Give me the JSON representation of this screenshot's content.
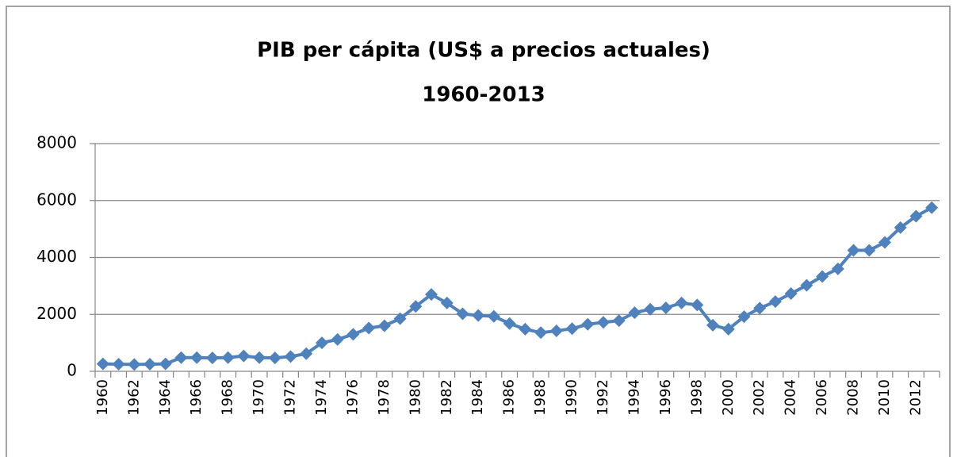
{
  "chart_data": {
    "type": "line",
    "title": "PIB per cápita (US$ a precios actuales)",
    "subtitle": "1960-2013",
    "categories": [
      "1960",
      null,
      "1962",
      null,
      "1964",
      null,
      "1966",
      null,
      "1968",
      null,
      "1970",
      null,
      "1972",
      null,
      "1974",
      null,
      "1976",
      null,
      "1978",
      null,
      "1980",
      null,
      "1982",
      null,
      "1984",
      null,
      "1986",
      null,
      "1988",
      null,
      "1990",
      null,
      "1992",
      null,
      "1994",
      null,
      "1996",
      null,
      "1998",
      null,
      "2000",
      null,
      "2002",
      null,
      "2004",
      null,
      "2006",
      null,
      "2008",
      null,
      "2010",
      null,
      "2012",
      null
    ],
    "series": [
      {
        "name": "PIB per cápita",
        "color": "#4f81bd",
        "values": [
          260,
          250,
          240,
          250,
          260,
          480,
          480,
          470,
          480,
          540,
          480,
          470,
          520,
          620,
          1000,
          1120,
          1300,
          1520,
          1600,
          1850,
          2280,
          2700,
          2400,
          2020,
          1960,
          1930,
          1680,
          1480,
          1360,
          1420,
          1500,
          1650,
          1720,
          1780,
          2060,
          2180,
          2230,
          2400,
          2330,
          1620,
          1480,
          1920,
          2220,
          2450,
          2730,
          3020,
          3330,
          3600,
          4250,
          4250,
          4530,
          5050,
          5450,
          5750
        ]
      }
    ],
    "ylim": [
      0,
      8000
    ],
    "yticks": [
      0,
      2000,
      4000,
      6000,
      8000
    ],
    "grid": true
  }
}
